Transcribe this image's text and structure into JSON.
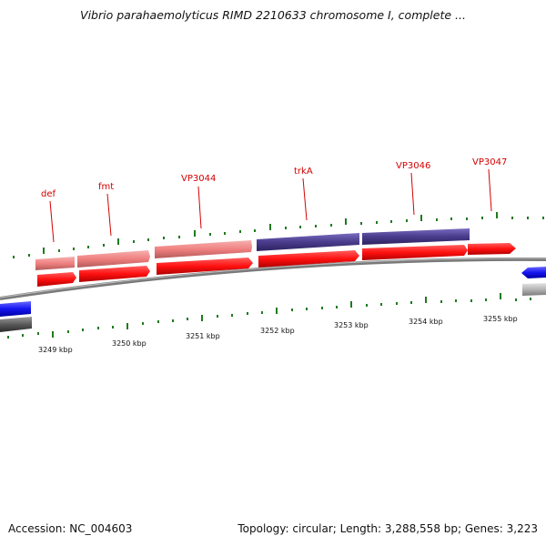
{
  "title": "Vibrio parahaemolyticus RIMD 2210633 chromosome I, complete ...",
  "footer": {
    "accession": "Accession: NC_004603",
    "summary": "Topology: circular; Length: 3,288,558 bp; Genes: 3,223"
  },
  "colors": {
    "gene_label": "#d40000",
    "cds_red": "#ff1010",
    "gene_pink": "#f08080",
    "gene_purple": "#4a3c8c",
    "gene_blue": "#1414f0",
    "gene_gray": "#b4b4b4",
    "backbone": "#8a8a8a",
    "tick_green": "#1f7a1f"
  },
  "gene_labels": [
    "def",
    "fmt",
    "VP3044",
    "trkA",
    "VP3046",
    "VP3047"
  ],
  "kbp_labels": [
    "3249 kbp",
    "3250 kbp",
    "3251 kbp",
    "3252 kbp",
    "3253 kbp",
    "3254 kbp",
    "3255 kbp"
  ]
}
